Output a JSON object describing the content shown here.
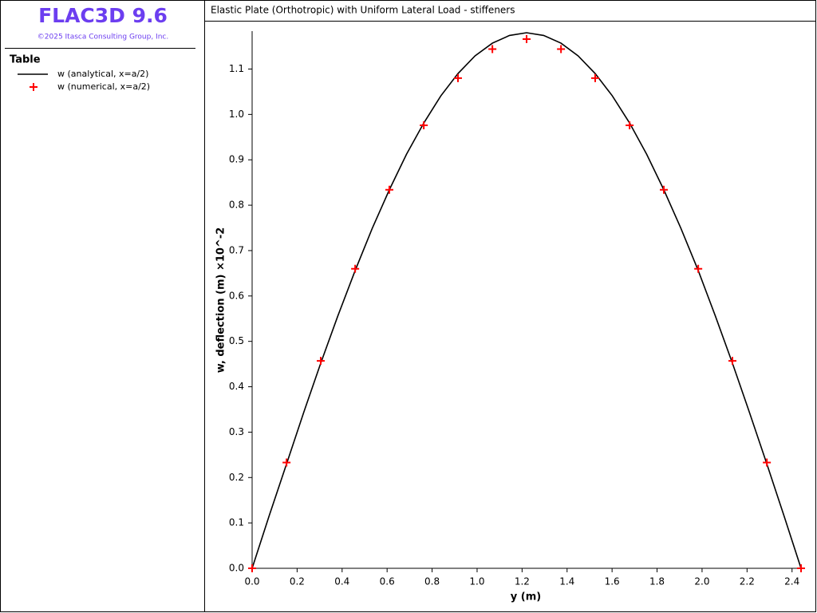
{
  "app": {
    "title": "FLAC3D 9.6",
    "copyright": "©2025 Itasca Consulting Group, Inc.",
    "panel_heading": "Table"
  },
  "chart_data": {
    "type": "line",
    "title": "Elastic Plate (Orthotropic) with Uniform Lateral Load - stiffeners",
    "x_label": "y (m)",
    "y_label": "w, deflection (m)  ×10^-2",
    "xlim": [
      0,
      2.44
    ],
    "ylim": [
      0,
      1.18
    ],
    "xticks": [
      {
        "value": 0,
        "label": "0.0"
      },
      {
        "value": 0.2,
        "label": "0.2"
      },
      {
        "value": 0.4,
        "label": "0.4"
      },
      {
        "value": 0.6,
        "label": "0.6"
      },
      {
        "value": 0.8,
        "label": "0.8"
      },
      {
        "value": 1,
        "label": "1.0"
      },
      {
        "value": 1.2,
        "label": "1.2"
      },
      {
        "value": 1.4,
        "label": "1.4"
      },
      {
        "value": 1.6,
        "label": "1.6"
      },
      {
        "value": 1.8,
        "label": "1.8"
      },
      {
        "value": 2,
        "label": "2.0"
      },
      {
        "value": 2.2,
        "label": "2.2"
      },
      {
        "value": 2.4,
        "label": "2.4"
      }
    ],
    "yticks": [
      {
        "value": 0,
        "label": "0.0"
      },
      {
        "value": 0.1,
        "label": "0.1"
      },
      {
        "value": 0.2,
        "label": "0.2"
      },
      {
        "value": 0.3,
        "label": "0.3"
      },
      {
        "value": 0.4,
        "label": "0.4"
      },
      {
        "value": 0.5,
        "label": "0.5"
      },
      {
        "value": 0.6,
        "label": "0.6"
      },
      {
        "value": 0.7,
        "label": "0.7"
      },
      {
        "value": 0.8,
        "label": "0.8"
      },
      {
        "value": 0.9,
        "label": "0.9"
      },
      {
        "value": 1,
        "label": "1.0"
      },
      {
        "value": 1.1,
        "label": "1.1"
      }
    ],
    "series": [
      {
        "name": "w (analytical, x=a/2)",
        "color": "#000000",
        "style": "line",
        "x": [
          0,
          0.076,
          0.153,
          0.229,
          0.305,
          0.381,
          0.458,
          0.534,
          0.61,
          0.686,
          0.763,
          0.839,
          0.915,
          0.991,
          1.068,
          1.144,
          1.22,
          1.296,
          1.373,
          1.449,
          1.525,
          1.601,
          1.678,
          1.754,
          1.83,
          1.906,
          1.983,
          2.059,
          2.135,
          2.211,
          2.288,
          2.364,
          2.44
        ],
        "values": [
          0,
          0.116,
          0.23,
          0.343,
          0.452,
          0.556,
          0.656,
          0.749,
          0.834,
          0.912,
          0.981,
          1.041,
          1.09,
          1.129,
          1.157,
          1.174,
          1.18,
          1.174,
          1.157,
          1.129,
          1.09,
          1.041,
          0.981,
          0.912,
          0.834,
          0.749,
          0.656,
          0.556,
          0.452,
          0.343,
          0.23,
          0.116,
          0
        ]
      },
      {
        "name": "w (numerical, x=a/2)",
        "color": "#ff0000",
        "style": "marker",
        "x": [
          0,
          0.153,
          0.305,
          0.458,
          0.61,
          0.763,
          0.915,
          1.068,
          1.22,
          1.373,
          1.525,
          1.678,
          1.83,
          1.983,
          2.135,
          2.288,
          2.44
        ],
        "values": [
          0,
          0.233,
          0.457,
          0.66,
          0.834,
          0.976,
          1.08,
          1.144,
          1.166,
          1.144,
          1.08,
          0.976,
          0.834,
          0.66,
          0.457,
          0.233,
          0
        ]
      }
    ]
  }
}
